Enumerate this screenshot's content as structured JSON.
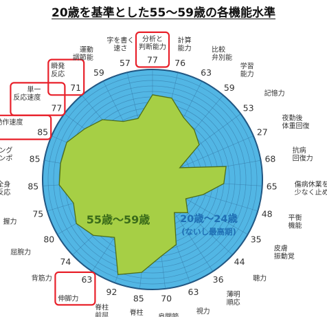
{
  "title": "20歳を基準とした55〜59歳の各機能水準",
  "colors": {
    "baseline_fill": "#52b6e4",
    "target_fill": "#a6cf45",
    "highlight": "#e8202a",
    "value_text": "#333333",
    "label_text": "#333333",
    "series_label_dark": "#3a6b1a",
    "series_label_blue": "#1f6fb4"
  },
  "chart_data": {
    "type": "radar",
    "title": "20歳を基準とした55〜59歳の各機能水準",
    "rmax": 100,
    "categories": [
      "分析と判断能力",
      "計算能力",
      "比較弁別能",
      "学習能力",
      "記憶力",
      "夜勤後体重回復",
      "抗病回復力",
      "傷病休業を少なく止める能力",
      "平衡機能",
      "皮膚振動覚",
      "聴力",
      "薄明順応",
      "視力",
      "肩関節",
      "脊柱側屈",
      "脊柱前屈",
      "伸脚力",
      "背筋力",
      "屈腕力",
      "握力",
      "全身跳躍反応",
      "タッピングテンポ",
      "動作速度",
      "単一反応速度",
      "瞬発反応",
      "運動調節能",
      "字を書く速さ"
    ],
    "label_lines": [
      [
        "分析と",
        "判断能力"
      ],
      [
        "計算",
        "能力"
      ],
      [
        "比較",
        "弁別能"
      ],
      [
        "学習",
        "能力"
      ],
      [
        "記憶力"
      ],
      [
        "夜勤後",
        "体重回復"
      ],
      [
        "抗病",
        "回復力"
      ],
      [
        "傷病休業を",
        "少なく止める能力"
      ],
      [
        "平衡",
        "機能"
      ],
      [
        "皮膚",
        "振動覚"
      ],
      [
        "聴力"
      ],
      [
        "薄明",
        "順応"
      ],
      [
        "視力"
      ],
      [
        "肩関節"
      ],
      [
        "脊柱",
        "側屈"
      ],
      [
        "脊柱",
        "前屈"
      ],
      [
        "伸脚力"
      ],
      [
        "背筋力"
      ],
      [
        "屈腕力"
      ],
      [
        "握力"
      ],
      [
        "全身",
        "跳躍反応"
      ],
      [
        "タッピング",
        "テンポ"
      ],
      [
        "動作速度"
      ],
      [
        "単一",
        "反応速度"
      ],
      [
        "瞬発",
        "反応"
      ],
      [
        "運動",
        "調節能"
      ],
      [
        "字を書く",
        "速さ"
      ]
    ],
    "values": [
      77,
      76,
      63,
      59,
      53,
      27,
      68,
      65,
      48,
      35,
      44,
      36,
      63,
      70,
      85,
      92,
      63,
      74,
      80,
      75,
      85,
      85,
      85,
      77,
      71,
      59,
      57
    ],
    "highlighted": [
      "分析と判断能力",
      "瞬発反応",
      "単一反応速度",
      "動作速度",
      "伸脚力"
    ],
    "series": [
      {
        "name": "55歳〜59歳",
        "values": [
          77,
          76,
          63,
          59,
          53,
          27,
          68,
          65,
          48,
          35,
          44,
          36,
          63,
          70,
          85,
          92,
          63,
          74,
          80,
          75,
          85,
          85,
          85,
          77,
          71,
          59,
          57
        ]
      },
      {
        "name": "20歳〜24歳",
        "note": "(ないし最高期)",
        "values": [
          100,
          100,
          100,
          100,
          100,
          100,
          100,
          100,
          100,
          100,
          100,
          100,
          100,
          100,
          100,
          100,
          100,
          100,
          100,
          100,
          100,
          100,
          100,
          100,
          100,
          100,
          100
        ]
      }
    ]
  }
}
